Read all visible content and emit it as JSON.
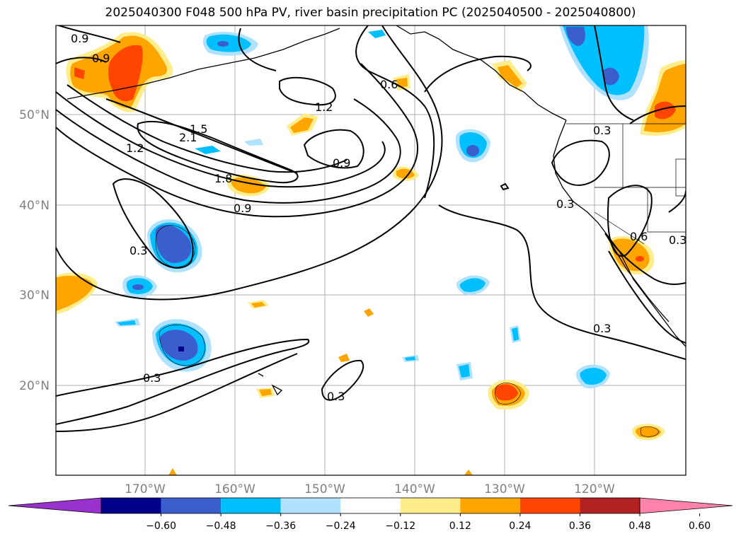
{
  "title": "2025040300 F048 500 hPa PV, river basin precipitation PC (2025040500 - 2025040800)",
  "lat_labels": [
    "50°N",
    "40°N",
    "30°N",
    "20°N"
  ],
  "lon_labels": [
    "170°W",
    "160°W",
    "150°W",
    "140°W",
    "130°W",
    "120°W"
  ],
  "contour_labels": [
    "0.9",
    "0.9",
    "1.2",
    "0.6",
    "1.5",
    "2.1",
    "1.2",
    "0.9",
    "1.8",
    "0.9",
    "0.3",
    "0.3",
    "0.3",
    "0.3",
    "0.3",
    "0.3",
    "0.3",
    "0.6"
  ],
  "colorbar": {
    "ticks": [
      "−0.60",
      "−0.48",
      "−0.36",
      "−0.24",
      "−0.12",
      "0.12",
      "0.24",
      "0.36",
      "0.48",
      "0.60"
    ],
    "colors": [
      "#9932cc",
      "#00008b",
      "#3a5fcd",
      "#00bfff",
      "#b0e2ff",
      "#ffffff",
      "#ffec8b",
      "#ffa500",
      "#ff4500",
      "#b22222",
      "#ff82ab"
    ]
  },
  "shading_colors": {
    "neg_weak": "#b0e2ff",
    "neg_mid": "#00bfff",
    "neg_strong": "#3a5fcd",
    "neg_max": "#00008b",
    "pos_weak": "#ffec8b",
    "pos_mid": "#ffa500",
    "pos_strong": "#ff4500"
  }
}
